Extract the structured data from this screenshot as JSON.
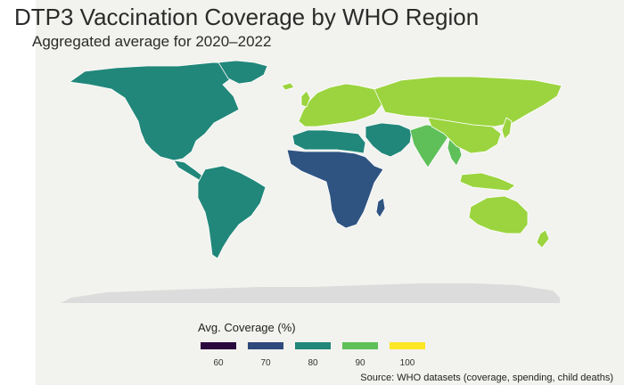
{
  "map": {
    "title": "DTP3 Vaccination Coverage by WHO Region",
    "subtitle": "Aggregated average for 2020–2022",
    "legend": {
      "title": "Avg. Coverage (%)",
      "ticks": [
        {
          "value": "60",
          "color": "#2a0a3d"
        },
        {
          "value": "70",
          "color": "#2f4a7c"
        },
        {
          "value": "80",
          "color": "#21877a"
        },
        {
          "value": "90",
          "color": "#5fc05a"
        },
        {
          "value": "100",
          "color": "#fde725"
        }
      ]
    },
    "source": "Source: WHO datasets (coverage, spending, child deaths)",
    "regions": [
      {
        "id": "americas",
        "color": "#21877a"
      },
      {
        "id": "europe",
        "color": "#9bd43f"
      },
      {
        "id": "eastern-mediterranean",
        "color": "#21877a"
      },
      {
        "id": "africa",
        "color": "#2f5482"
      },
      {
        "id": "south-east-asia",
        "color": "#5fc05a"
      },
      {
        "id": "western-pacific",
        "color": "#9bd43f"
      },
      {
        "id": "antarctica",
        "color": "#dcdcdc"
      }
    ]
  }
}
